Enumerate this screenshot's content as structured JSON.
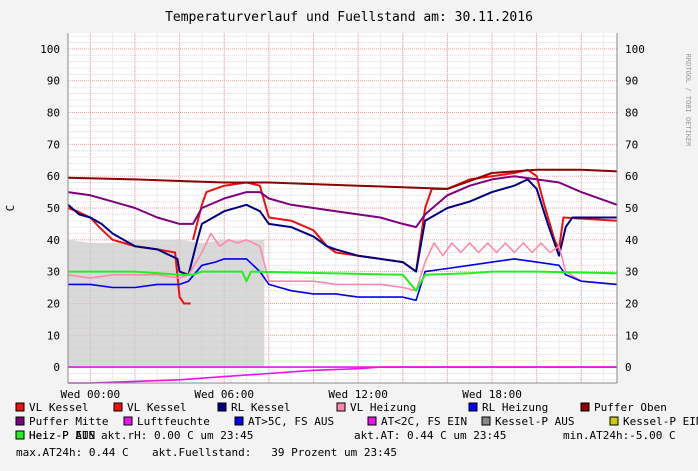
{
  "chart_data": {
    "type": "line",
    "title": "Temperaturverlauf und Fuellstand am: 30.11.2016",
    "ylabel": "C",
    "watermark": "RRDTOOL / TOBI OETIKER",
    "ylim": [
      -5,
      105
    ],
    "y_ticks": [
      0,
      10,
      20,
      30,
      40,
      50,
      60,
      70,
      80,
      90,
      100
    ],
    "x_range_hours": [
      -1,
      23.6
    ],
    "x_ticks": [
      {
        "h": 0,
        "label": "Wed 00:00"
      },
      {
        "h": 6,
        "label": "Wed 06:00"
      },
      {
        "h": 12,
        "label": "Wed 12:00"
      },
      {
        "h": 18,
        "label": "Wed 18:00"
      }
    ],
    "grid": true,
    "series": [
      {
        "name": "VL Kessel",
        "color": "#ee1111",
        "points": [
          [
            -1,
            50
          ],
          [
            -0.6,
            49
          ],
          [
            0,
            47
          ],
          [
            0.4,
            44
          ],
          [
            1,
            40
          ],
          [
            2,
            38
          ],
          [
            3,
            37
          ],
          [
            3.8,
            36
          ],
          [
            4,
            22
          ],
          [
            4.2,
            20
          ],
          [
            4.5,
            20
          ]
        ]
      },
      {
        "name": "VL Kessel",
        "color": "#ee1111",
        "points": [
          [
            4.6,
            40
          ],
          [
            5,
            51
          ],
          [
            5.2,
            55
          ],
          [
            6,
            57
          ],
          [
            7,
            58
          ],
          [
            7.6,
            57
          ],
          [
            8,
            47
          ],
          [
            9,
            46
          ],
          [
            10,
            43
          ],
          [
            10.6,
            38
          ],
          [
            11,
            36
          ],
          [
            12,
            35
          ],
          [
            13,
            34
          ],
          [
            14,
            33
          ],
          [
            14.6,
            30
          ],
          [
            15,
            50
          ],
          [
            15.3,
            56
          ],
          [
            16,
            56
          ],
          [
            17,
            59
          ],
          [
            18,
            60
          ],
          [
            19,
            61
          ],
          [
            19.6,
            62
          ],
          [
            20,
            60
          ],
          [
            20.3,
            52
          ],
          [
            20.8,
            40
          ],
          [
            21,
            37
          ],
          [
            21.2,
            47
          ],
          [
            23.6,
            46
          ]
        ]
      },
      {
        "name": "RL Kessel",
        "color": "#000080",
        "points": [
          [
            -1,
            51
          ],
          [
            -0.5,
            48
          ],
          [
            0,
            47
          ],
          [
            0.5,
            45
          ],
          [
            1,
            42
          ],
          [
            2,
            38
          ],
          [
            3,
            37
          ],
          [
            3.9,
            34
          ],
          [
            4,
            30
          ],
          [
            4.4,
            29
          ],
          [
            4.8,
            40
          ],
          [
            5,
            45
          ],
          [
            6,
            49
          ],
          [
            7,
            51
          ],
          [
            7.6,
            49
          ],
          [
            8,
            45
          ],
          [
            9,
            44
          ],
          [
            10,
            41
          ],
          [
            10.6,
            38
          ],
          [
            11,
            37
          ],
          [
            12,
            35
          ],
          [
            13,
            34
          ],
          [
            14,
            33
          ],
          [
            14.6,
            30
          ],
          [
            15,
            46
          ],
          [
            16,
            50
          ],
          [
            17,
            52
          ],
          [
            18,
            55
          ],
          [
            19,
            57
          ],
          [
            19.6,
            59
          ],
          [
            20,
            56
          ],
          [
            20.5,
            45
          ],
          [
            21,
            35
          ],
          [
            21.3,
            44
          ],
          [
            21.6,
            47
          ],
          [
            23.6,
            47
          ]
        ]
      },
      {
        "name": "VL Heizung",
        "color": "#ff88aa",
        "points": [
          [
            -1,
            29
          ],
          [
            0,
            28
          ],
          [
            1,
            29
          ],
          [
            2,
            29
          ],
          [
            3,
            29
          ],
          [
            4,
            28
          ],
          [
            4.4,
            29
          ],
          [
            5,
            36
          ],
          [
            5.4,
            42
          ],
          [
            5.8,
            38
          ],
          [
            6.2,
            40
          ],
          [
            6.6,
            39
          ],
          [
            7,
            40
          ],
          [
            7.6,
            38
          ],
          [
            8,
            27
          ],
          [
            9,
            27
          ],
          [
            10,
            27
          ],
          [
            11,
            26
          ],
          [
            12,
            26
          ],
          [
            13,
            26
          ],
          [
            14,
            25
          ],
          [
            14.6,
            24
          ],
          [
            15,
            33
          ],
          [
            15.4,
            39
          ],
          [
            15.8,
            35
          ],
          [
            16.2,
            39
          ],
          [
            16.6,
            36
          ],
          [
            17,
            39
          ],
          [
            17.4,
            36
          ],
          [
            17.8,
            39
          ],
          [
            18.2,
            36
          ],
          [
            18.6,
            39
          ],
          [
            19,
            36
          ],
          [
            19.4,
            39
          ],
          [
            19.8,
            36
          ],
          [
            20.2,
            39
          ],
          [
            20.6,
            36
          ],
          [
            21,
            38
          ],
          [
            21.3,
            30
          ],
          [
            22,
            27
          ],
          [
            23.6,
            26
          ]
        ]
      },
      {
        "name": "RL Heizung",
        "color": "#0000ee",
        "points": [
          [
            -1,
            26
          ],
          [
            0,
            26
          ],
          [
            1,
            25
          ],
          [
            2,
            25
          ],
          [
            3,
            26
          ],
          [
            4,
            26
          ],
          [
            4.4,
            27
          ],
          [
            5,
            32
          ],
          [
            5.6,
            33
          ],
          [
            6,
            34
          ],
          [
            7,
            34
          ],
          [
            7.6,
            30
          ],
          [
            8,
            26
          ],
          [
            9,
            24
          ],
          [
            10,
            23
          ],
          [
            11,
            23
          ],
          [
            12,
            22
          ],
          [
            13,
            22
          ],
          [
            14,
            22
          ],
          [
            14.6,
            21
          ],
          [
            15,
            30
          ],
          [
            16,
            31
          ],
          [
            17,
            32
          ],
          [
            18,
            33
          ],
          [
            19,
            34
          ],
          [
            20,
            33
          ],
          [
            21,
            32
          ],
          [
            21.3,
            29
          ],
          [
            22,
            27
          ],
          [
            23.6,
            26
          ]
        ]
      },
      {
        "name": "Puffer Oben",
        "color": "#8b0000",
        "points": [
          [
            -1,
            59.5
          ],
          [
            2,
            59
          ],
          [
            4,
            58.5
          ],
          [
            6,
            58
          ],
          [
            8,
            58
          ],
          [
            10,
            57.5
          ],
          [
            12,
            57
          ],
          [
            14,
            56.5
          ],
          [
            16,
            56
          ],
          [
            18,
            61
          ],
          [
            20,
            62
          ],
          [
            22,
            62
          ],
          [
            23.6,
            61.5
          ]
        ]
      },
      {
        "name": "Puffer Mitte",
        "color": "#800080",
        "points": [
          [
            -1,
            55
          ],
          [
            0,
            54
          ],
          [
            1,
            52
          ],
          [
            2,
            50
          ],
          [
            3,
            47
          ],
          [
            4,
            45
          ],
          [
            4.6,
            45
          ],
          [
            5,
            50
          ],
          [
            6,
            53
          ],
          [
            7,
            55
          ],
          [
            7.6,
            55
          ],
          [
            8,
            53
          ],
          [
            9,
            51
          ],
          [
            10,
            50
          ],
          [
            11,
            49
          ],
          [
            12,
            48
          ],
          [
            13,
            47
          ],
          [
            14,
            45
          ],
          [
            14.6,
            44
          ],
          [
            15,
            48
          ],
          [
            16,
            54
          ],
          [
            17,
            57
          ],
          [
            18,
            59
          ],
          [
            19,
            60
          ],
          [
            20,
            59
          ],
          [
            21,
            58
          ],
          [
            22,
            55
          ],
          [
            23.6,
            51
          ]
        ]
      },
      {
        "name": "Luftfeuchte",
        "color": "#ee11ee",
        "points": [
          [
            -1,
            -5
          ],
          [
            0,
            -5
          ],
          [
            2,
            -4.5
          ],
          [
            4,
            -4
          ],
          [
            6,
            -3
          ],
          [
            8,
            -2
          ],
          [
            10,
            -1
          ],
          [
            12,
            -0.5
          ],
          [
            13,
            0
          ],
          [
            23.6,
            0
          ]
        ]
      },
      {
        "name": "AT>5C, FS AUS",
        "color": "#0000ee",
        "points": []
      },
      {
        "name": "AT<2C, FS EIN",
        "color": "#ee11ee",
        "points": [
          [
            -1,
            0
          ],
          [
            23.6,
            0
          ]
        ]
      },
      {
        "name": "Kessel-P AUS",
        "color": "#888888",
        "points": []
      },
      {
        "name": "Kessel-P EIN",
        "color": "#cccc00",
        "points": []
      },
      {
        "name": "Heiz-P AUS",
        "color": "#ee1111",
        "points": []
      },
      {
        "name": "Heiz-P EIN",
        "color": "#22ee22",
        "points": [
          [
            -1,
            30
          ],
          [
            2,
            30
          ],
          [
            4,
            29
          ],
          [
            4.6,
            29
          ],
          [
            5,
            30
          ],
          [
            6.8,
            30
          ],
          [
            7,
            27
          ],
          [
            7.2,
            30
          ],
          [
            14,
            29
          ],
          [
            14.6,
            24
          ],
          [
            15,
            29
          ],
          [
            17,
            29.5
          ],
          [
            18,
            30
          ],
          [
            20,
            30
          ],
          [
            23.6,
            29.5
          ]
        ]
      }
    ],
    "fuellstand_area": {
      "color": "#cccccc",
      "points": [
        [
          -1,
          40
        ],
        [
          0,
          39
        ],
        [
          1,
          39
        ],
        [
          2,
          40
        ],
        [
          3,
          40
        ],
        [
          4,
          40
        ],
        [
          5,
          39
        ],
        [
          6,
          40
        ],
        [
          7,
          40
        ],
        [
          7.8,
          40
        ]
      ]
    },
    "legend_placement": "bottom",
    "stats": {
      "line_a": [
        "akt.rH: 0.00 C um 23:45",
        "akt.AT: 0.44 C um 23:45",
        "min.AT24h:-5.00 C"
      ],
      "line_b": [
        "max.AT24h: 0.44 C",
        "akt.Fuellstand:   39 Prozent um 23:45"
      ]
    }
  }
}
